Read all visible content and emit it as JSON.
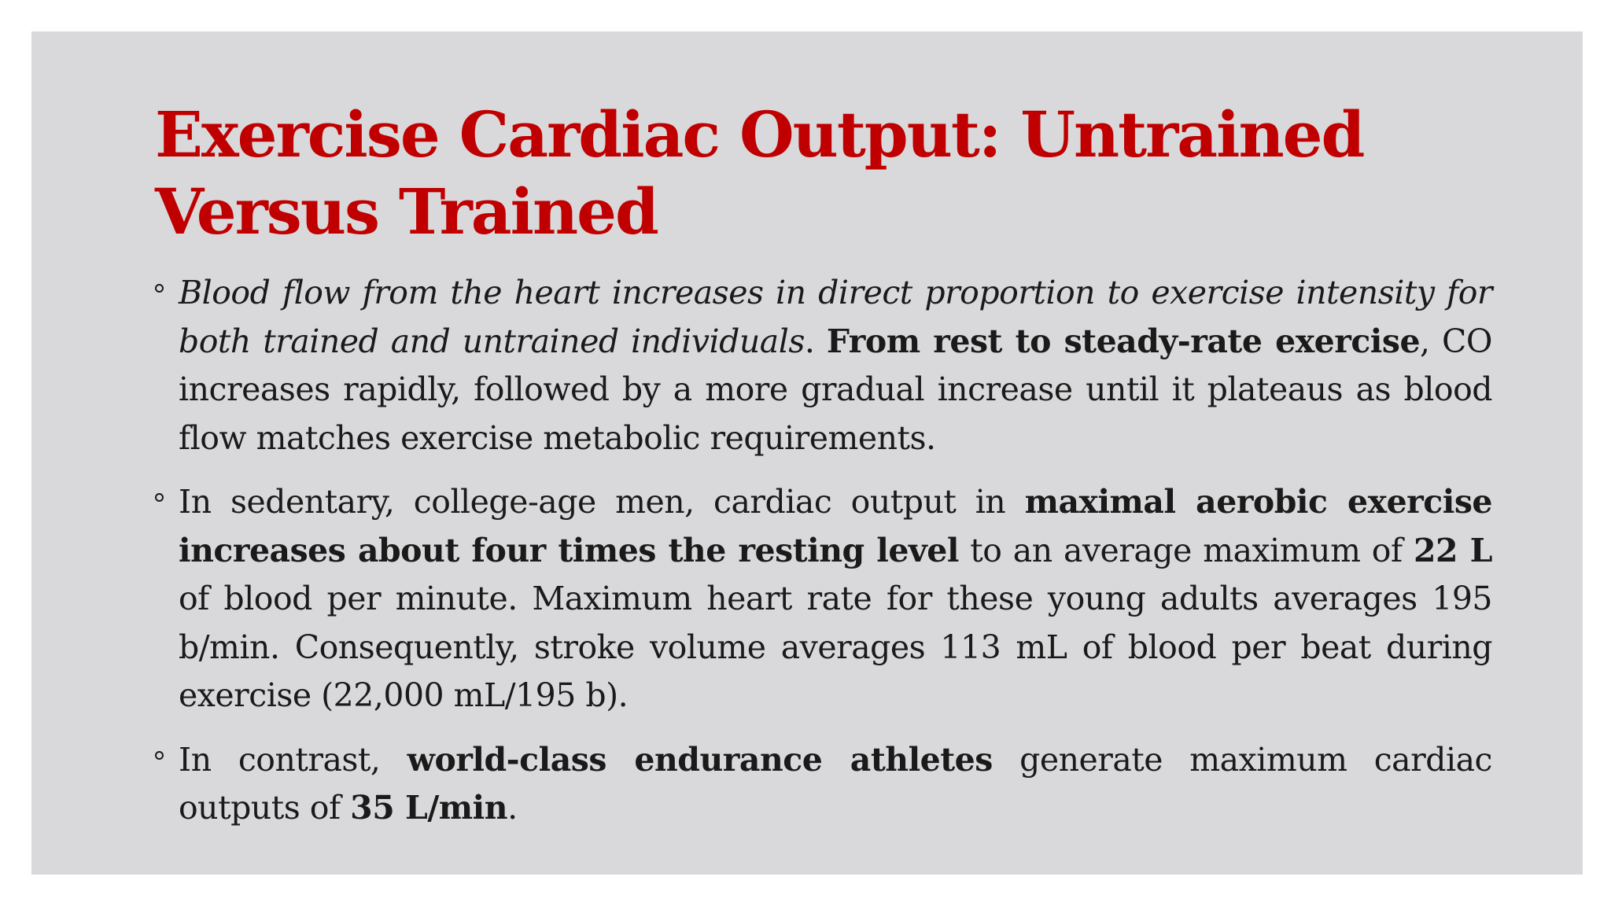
{
  "slide": {
    "title": "Exercise Cardiac Output: Untrained Versus Trained",
    "bullets": [
      {
        "b1_italic": "Blood flow from the heart increases in direct proportion to exercise intensity for both trained and untrained individuals",
        "b1_text1": ". ",
        "b1_bold": "From rest to steady-rate exercise",
        "b1_text2": ", CO increases rapidly, followed by a more gradual increase until it plateaus as blood flow matches exercise metabolic requirements."
      },
      {
        "b2_text1": "In sedentary, college-age men, cardiac output in ",
        "b2_bold1": "maximal aerobic exercise increases about four times the resting level",
        "b2_text2": " to an average maximum of ",
        "b2_bold2": "22 L",
        "b2_text3": " of blood per minute. Maximum heart rate for these young adults averages 195 b/min. Consequently, stroke volume averages 113 mL of blood per beat during exercise (22,000 mL/195 b)."
      },
      {
        "b3_text1": "In contrast, ",
        "b3_bold1": "world-class endurance athletes",
        "b3_text2": " generate maximum cardiac outputs of ",
        "b3_bold2": "35 L/min",
        "b3_text3": "."
      }
    ]
  }
}
